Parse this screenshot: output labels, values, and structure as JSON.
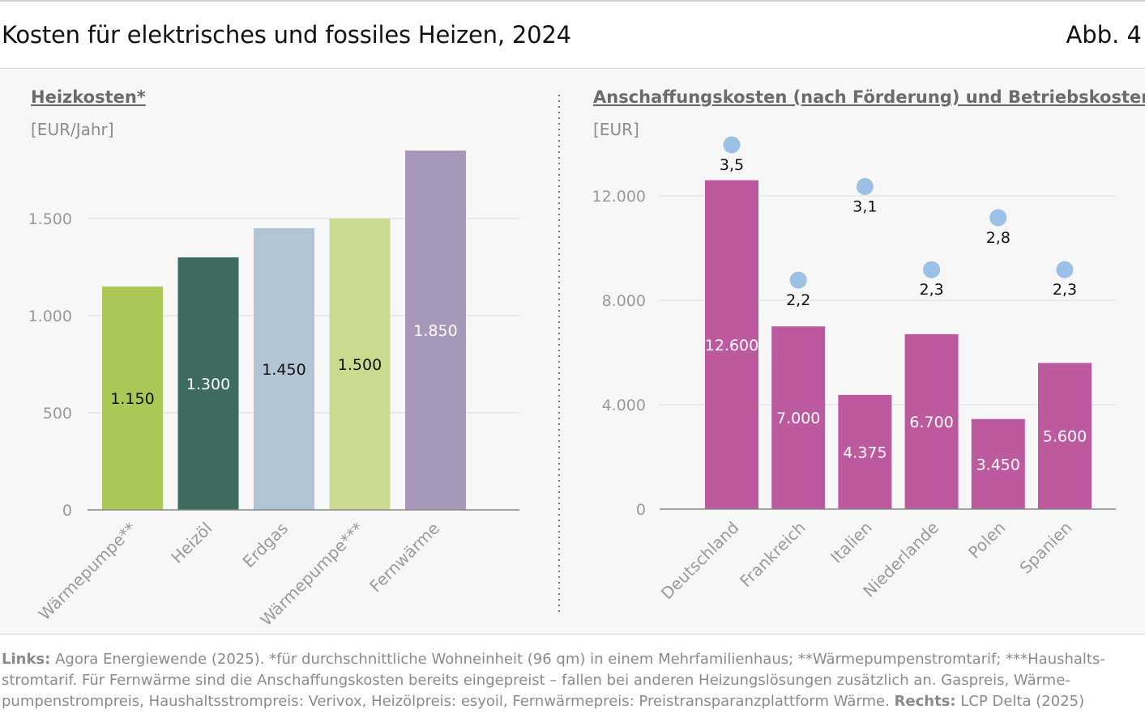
{
  "header": {
    "title": "Kosten für elektrisches und fossiles Heizen, 2024",
    "figure_number": "Abb. 4"
  },
  "chart_data": [
    {
      "type": "bar",
      "title": "Heizkosten*",
      "unit": "[EUR/Jahr]",
      "categories": [
        "Wärmepumpe**",
        "Heizöl",
        "Erdgas",
        "Wärmepumpe***",
        "Fernwärme"
      ],
      "values": [
        1150,
        1300,
        1450,
        1500,
        1850
      ],
      "value_labels": [
        "1.150",
        "1.300",
        "1.450",
        "1.500",
        "1.850"
      ],
      "colors": [
        "#a9c855",
        "#3e6b61",
        "#b3c4d4",
        "#cadb90",
        "#a797b9"
      ],
      "label_colors": [
        "#111111",
        "#ffffff",
        "#111111",
        "#111111",
        "#ffffff"
      ],
      "yticks": [
        0,
        500,
        1000,
        1500
      ],
      "ytick_labels": [
        "0",
        "500",
        "1.000",
        "1.500"
      ],
      "ylim": [
        0,
        1850
      ],
      "grid": true
    },
    {
      "type": "bar",
      "title": "Anschaffungskosten (nach Förderung) und Betriebskosten",
      "unit": "[EUR]",
      "categories": [
        "Deutschland",
        "Frankreich",
        "Italien",
        "Niederlande",
        "Polen",
        "Spanien"
      ],
      "values": [
        12600,
        7000,
        4375,
        6700,
        3450,
        5600
      ],
      "value_labels": [
        "12.600",
        "7.000",
        "4.375",
        "6.700",
        "3.450",
        "5.600"
      ],
      "bar_color": "#bd599e",
      "yticks": [
        0,
        4000,
        8000,
        12000
      ],
      "ytick_labels": [
        "0",
        "4.000",
        "8.000",
        "12.000"
      ],
      "ylim": [
        0,
        12000
      ],
      "grid": true,
      "markers": {
        "color": "#9dc0e6",
        "values": [
          3.5,
          3.1,
          2.2,
          2.3,
          2.8,
          2.3
        ],
        "labels": [
          "3,5",
          "3,1",
          "2,2",
          "2,3",
          "2,8",
          "2,3"
        ],
        "categories_order": [
          "Deutschland",
          "Italien",
          "Frankreich",
          "Niederlande",
          "Polen",
          "Spanien"
        ]
      }
    }
  ],
  "footer": {
    "left_label": "Links:",
    "left_text": "Agora Energiewende (2025). *für durchschnittliche Wohneinheit (96 qm) in einem Mehrfamilienhaus; **Wärmepumpenstromtarif; ***Haushalts­stromtarif. Für Fernwärme sind die Anschaffungskosten bereits eingepreist – fallen bei anderen Heizungslösungen zusätzlich an. Gaspreis, Wärme­pumpenstrompreis, Haushaltsstrompreis: Verivox, Heizölpreis: esyoil, Fernwärmepreis: Preistransparanzplattform Wärme.",
    "right_label": "Rechts:",
    "right_text": "LCP Delta (2025)"
  }
}
